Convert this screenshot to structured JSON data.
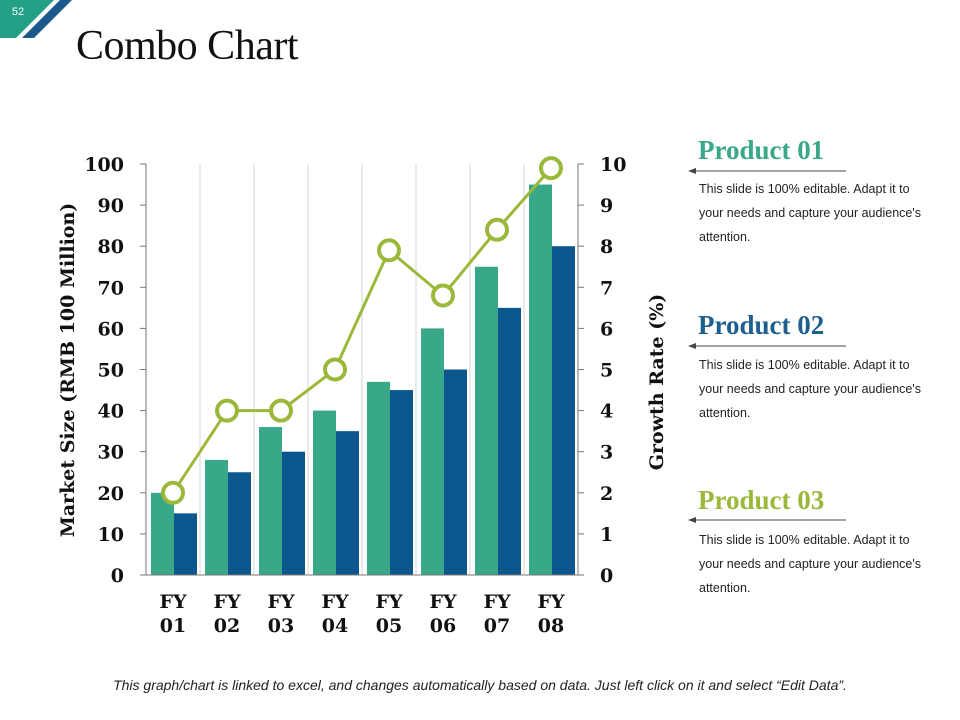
{
  "slide": {
    "number": "52",
    "title": "Combo Chart"
  },
  "colors": {
    "primary_bar": "#39a889",
    "secondary_bar": "#0d578f",
    "line": "#9bb83a",
    "product01": "#39a889",
    "product02": "#1e5f8e",
    "product03": "#9bb83a",
    "corner_teal": "#23a086",
    "corner_blue": "#1d5a8c"
  },
  "chart_data": {
    "type": "bar",
    "categories": [
      [
        "FY",
        "01"
      ],
      [
        "FY",
        "02"
      ],
      [
        "FY",
        "03"
      ],
      [
        "FY",
        "04"
      ],
      [
        "FY",
        "05"
      ],
      [
        "FY",
        "06"
      ],
      [
        "FY",
        "07"
      ],
      [
        "FY",
        "08"
      ]
    ],
    "series": [
      {
        "values": [
          20,
          28,
          36,
          40,
          47,
          60,
          75,
          95
        ],
        "axis": "left",
        "kind": "bar"
      },
      {
        "values": [
          15,
          25,
          30,
          35,
          45,
          50,
          65,
          80
        ],
        "axis": "left",
        "kind": "bar"
      },
      {
        "values": [
          2,
          4,
          4,
          5,
          7.9,
          6.8,
          8.4,
          9.9
        ],
        "axis": "right",
        "kind": "line"
      }
    ],
    "ylabel": "Market Size (RMB 100 Million)",
    "ylabel_right": "Growth Rate (%)",
    "ylim": [
      0,
      100
    ],
    "ylim_right": [
      0,
      10
    ],
    "yticks": [
      0,
      10,
      20,
      30,
      40,
      50,
      60,
      70,
      80,
      90,
      100
    ],
    "yticks_right": [
      0,
      1,
      2,
      3,
      4,
      5,
      6,
      7,
      8,
      9,
      10
    ],
    "grid": "vertical",
    "legend": "none"
  },
  "products": [
    {
      "title": "Product 01",
      "desc": "This slide is 100% editable. Adapt it to your needs and capture your audience's attention."
    },
    {
      "title": "Product 02",
      "desc": "This slide is 100% editable. Adapt it to your needs and capture your audience's attention."
    },
    {
      "title": "Product 03",
      "desc": "This slide is 100% editable. Adapt it to your needs and capture your audience's attention."
    }
  ],
  "footer": "This graph/chart is linked to excel, and changes automatically based on data. Just left click on it and select “Edit Data”."
}
